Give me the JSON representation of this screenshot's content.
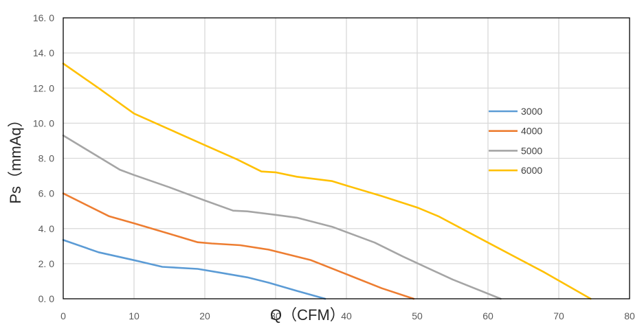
{
  "chart_data": {
    "type": "line",
    "title": "",
    "xlabel": "Q（CFM）",
    "ylabel": "Ps（mmAq）",
    "xlim": [
      0,
      80
    ],
    "ylim": [
      0,
      16
    ],
    "x_ticks": [
      "0",
      "10",
      "20",
      "30",
      "40",
      "50",
      "60",
      "70",
      "80"
    ],
    "x_tick_values": [
      0,
      10,
      20,
      30,
      40,
      50,
      60,
      70,
      80
    ],
    "y_ticks": [
      "0. 0",
      "2. 0",
      "4. 0",
      "6. 0",
      "8. 0",
      "10. 0",
      "12. 0",
      "14. 0",
      "16. 0"
    ],
    "y_tick_values": [
      0,
      2,
      4,
      6,
      8,
      10,
      12,
      14,
      16
    ],
    "grid": true,
    "legend_position": "right",
    "series": [
      {
        "name": "3000",
        "color": "#5B9BD5",
        "points": [
          [
            0,
            3.35
          ],
          [
            5,
            2.65
          ],
          [
            10,
            2.2
          ],
          [
            14,
            1.82
          ],
          [
            19,
            1.7
          ],
          [
            22,
            1.5
          ],
          [
            26,
            1.22
          ],
          [
            29,
            0.92
          ],
          [
            33,
            0.45
          ],
          [
            37,
            0.0
          ]
        ]
      },
      {
        "name": "4000",
        "color": "#ED7D31",
        "points": [
          [
            0,
            6.0
          ],
          [
            6.5,
            4.7
          ],
          [
            10,
            4.3
          ],
          [
            15,
            3.7
          ],
          [
            19,
            3.22
          ],
          [
            21,
            3.15
          ],
          [
            25,
            3.05
          ],
          [
            29,
            2.8
          ],
          [
            35,
            2.2
          ],
          [
            40,
            1.4
          ],
          [
            45,
            0.6
          ],
          [
            49.5,
            0.0
          ]
        ]
      },
      {
        "name": "5000",
        "color": "#A5A5A5",
        "points": [
          [
            0,
            9.3
          ],
          [
            8,
            7.35
          ],
          [
            10,
            7.05
          ],
          [
            15,
            6.35
          ],
          [
            20,
            5.6
          ],
          [
            24,
            5.02
          ],
          [
            26,
            4.98
          ],
          [
            30,
            4.78
          ],
          [
            33,
            4.62
          ],
          [
            38,
            4.1
          ],
          [
            44,
            3.2
          ],
          [
            48,
            2.4
          ],
          [
            55,
            1.1
          ],
          [
            61.8,
            0.0
          ]
        ]
      },
      {
        "name": "6000",
        "color": "#FFC000",
        "points": [
          [
            0,
            13.4
          ],
          [
            5,
            12.0
          ],
          [
            10,
            10.55
          ],
          [
            15,
            9.65
          ],
          [
            20,
            8.75
          ],
          [
            24.5,
            7.95
          ],
          [
            28,
            7.25
          ],
          [
            30,
            7.2
          ],
          [
            33,
            6.95
          ],
          [
            38,
            6.7
          ],
          [
            40,
            6.45
          ],
          [
            45,
            5.85
          ],
          [
            50,
            5.2
          ],
          [
            53,
            4.7
          ],
          [
            60,
            3.2
          ],
          [
            68,
            1.5
          ],
          [
            74.5,
            0.0
          ]
        ]
      }
    ]
  }
}
